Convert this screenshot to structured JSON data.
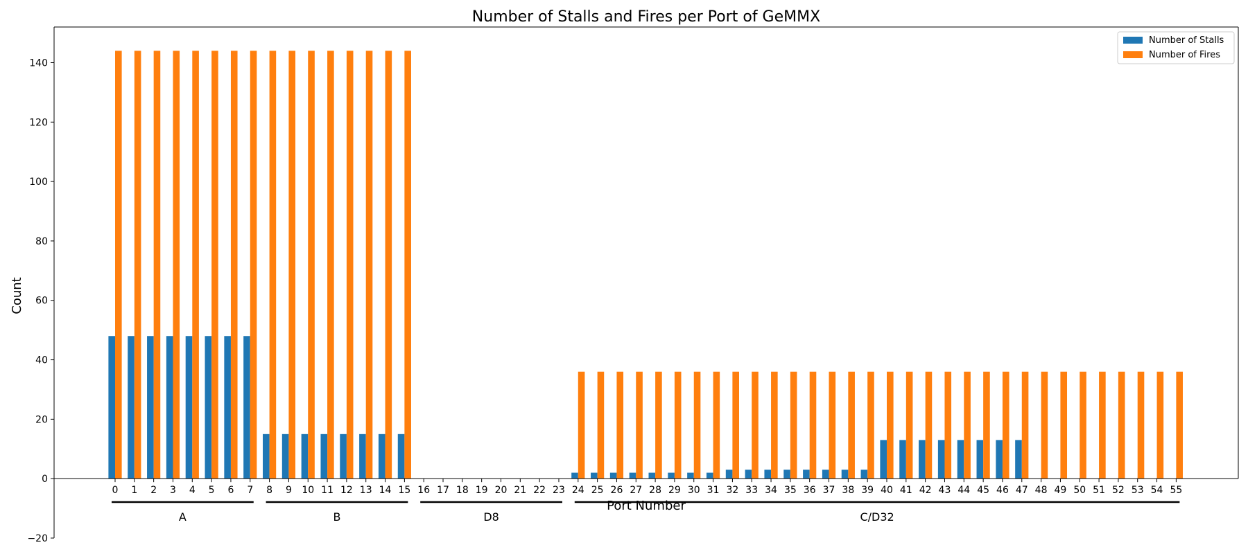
{
  "chart_data": {
    "type": "bar",
    "title": "Number of Stalls and Fires per Port of GeMMX",
    "xlabel": "Port Number",
    "ylabel": "Count",
    "ylim": [
      -20,
      152
    ],
    "yticks": [
      -20,
      0,
      20,
      40,
      60,
      80,
      100,
      120,
      140
    ],
    "categories": [
      "0",
      "1",
      "2",
      "3",
      "4",
      "5",
      "6",
      "7",
      "8",
      "9",
      "10",
      "11",
      "12",
      "13",
      "14",
      "15",
      "16",
      "17",
      "18",
      "19",
      "20",
      "21",
      "22",
      "23",
      "24",
      "25",
      "26",
      "27",
      "28",
      "29",
      "30",
      "31",
      "32",
      "33",
      "34",
      "35",
      "36",
      "37",
      "38",
      "39",
      "40",
      "41",
      "42",
      "43",
      "44",
      "45",
      "46",
      "47",
      "48",
      "49",
      "50",
      "51",
      "52",
      "53",
      "54",
      "55"
    ],
    "series": [
      {
        "name": "Number of Stalls",
        "color": "#1f77b4",
        "values": [
          48,
          48,
          48,
          48,
          48,
          48,
          48,
          48,
          15,
          15,
          15,
          15,
          15,
          15,
          15,
          15,
          0,
          0,
          0,
          0,
          0,
          0,
          0,
          0,
          2,
          2,
          2,
          2,
          2,
          2,
          2,
          2,
          3,
          3,
          3,
          3,
          3,
          3,
          3,
          3,
          13,
          13,
          13,
          13,
          13,
          13,
          13,
          13,
          0,
          0,
          0,
          0,
          0,
          0,
          0,
          0
        ]
      },
      {
        "name": "Number of Fires",
        "color": "#ff7f0e",
        "values": [
          144,
          144,
          144,
          144,
          144,
          144,
          144,
          144,
          144,
          144,
          144,
          144,
          144,
          144,
          144,
          144,
          0,
          0,
          0,
          0,
          0,
          0,
          0,
          0,
          36,
          36,
          36,
          36,
          36,
          36,
          36,
          36,
          36,
          36,
          36,
          36,
          36,
          36,
          36,
          36,
          36,
          36,
          36,
          36,
          36,
          36,
          36,
          36,
          36,
          36,
          36,
          36,
          36,
          36,
          36,
          36
        ]
      }
    ],
    "groups": [
      {
        "label": "A",
        "start": 0,
        "end": 7
      },
      {
        "label": "B",
        "start": 8,
        "end": 15
      },
      {
        "label": "D8",
        "start": 16,
        "end": 23
      },
      {
        "label": "C/D32",
        "start": 24,
        "end": 55
      }
    ],
    "legend_position": "top-right",
    "grid": false
  }
}
